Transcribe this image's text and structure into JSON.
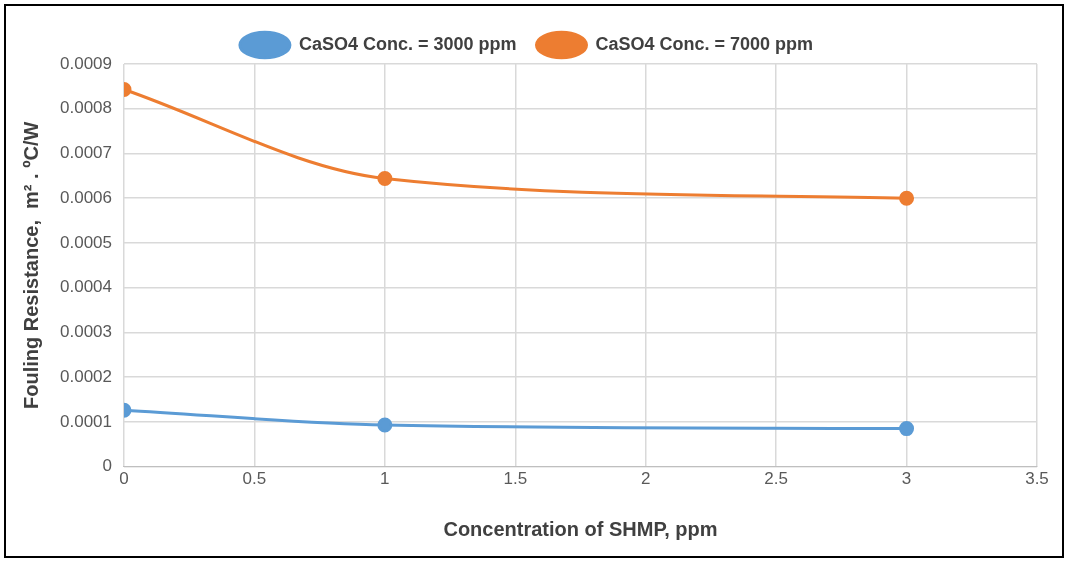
{
  "chart_data": {
    "type": "line",
    "xlabel": "Concentration of SHMP, ppm",
    "ylabel": "Fouling Resistance,  m² . ºC/W",
    "x": [
      0,
      1,
      3
    ],
    "series": [
      {
        "name": "CaSO4 Conc. = 3000 ppm",
        "color": "#5b9bd5",
        "values": [
          0.000126,
          9.3e-05,
          8.5e-05
        ]
      },
      {
        "name": "CaSO4 Conc. = 7000 ppm",
        "color": "#ed7d31",
        "values": [
          0.000843,
          0.000644,
          0.0006
        ]
      }
    ],
    "xlim": [
      0,
      3.5
    ],
    "xticks": [
      0,
      0.5,
      1,
      1.5,
      2,
      2.5,
      3,
      3.5
    ],
    "ylim": [
      0,
      0.0009
    ],
    "yticks": [
      0,
      0.0001,
      0.0002,
      0.0003,
      0.0004,
      0.0005,
      0.0006,
      0.0007,
      0.0008,
      0.0009
    ],
    "grid": true,
    "legend": "top",
    "marker": "circle",
    "line_style": "solid"
  }
}
